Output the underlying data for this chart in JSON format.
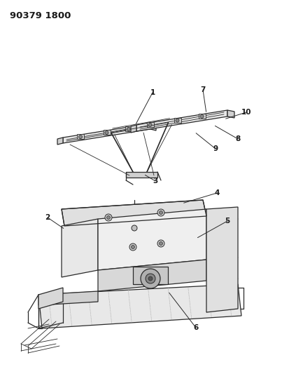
{
  "title": "90379 1800",
  "background_color": "#ffffff",
  "line_color": "#2a2a2a",
  "text_color": "#1a1a1a",
  "fig_width": 4.03,
  "fig_height": 5.33,
  "dpi": 100
}
